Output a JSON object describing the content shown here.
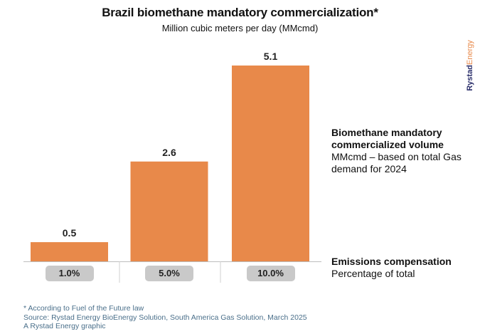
{
  "title": "Brazil biomethane mandatory commercialization*",
  "subtitle": "Million cubic meters per day (MMcmd)",
  "brand": {
    "part1": "Rystad",
    "part2": "Energy"
  },
  "legend": {
    "volume_title": "Biomethane mandatory commercialized volume",
    "volume_desc": "MMcmd – based on total Gas demand for 2024",
    "emissions_title": "Emissions compensation",
    "emissions_desc": "Percentage of total"
  },
  "footer": {
    "note": "* According to Fuel of the Future law",
    "source": "Source: Rystad Energy BioEnergy Solution, South America Gas Solution, March 2025",
    "credit": "A Rystad Energy graphic"
  },
  "chart_data": {
    "type": "bar",
    "categories": [
      "1.0%",
      "5.0%",
      "10.0%"
    ],
    "values": [
      0.5,
      2.6,
      5.1
    ],
    "value_labels": [
      "0.5",
      "2.6",
      "5.1"
    ],
    "title": "Brazil biomethane mandatory commercialization*",
    "ylabel": "Million cubic meters per day (MMcmd)",
    "xlabel": "Emissions compensation",
    "ylim": [
      0,
      5.1
    ],
    "bar_color": "#e8894a",
    "grid": false
  }
}
